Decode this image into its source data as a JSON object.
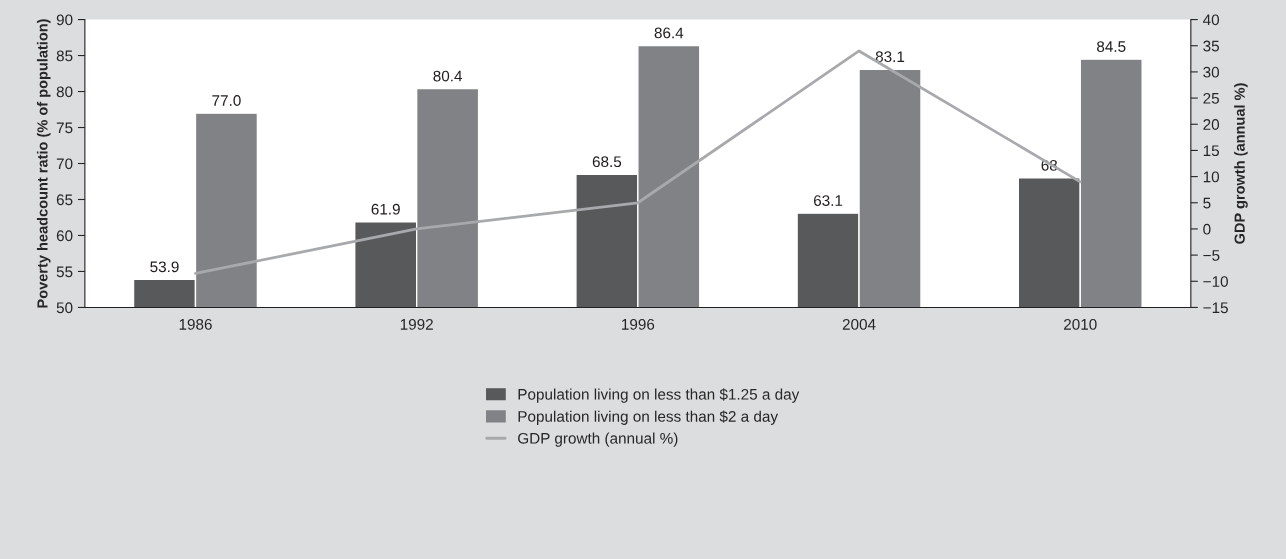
{
  "chart_data": {
    "type": "bar",
    "categories": [
      "1986",
      "1992",
      "1996",
      "2004",
      "2010"
    ],
    "ylabel": "Poverty headcount ratio (% of population)",
    "y2label": "GDP growth (annual %)",
    "series": [
      {
        "name": "Population living on less than $1.25 a day",
        "color": "#58595b",
        "values": [
          53.9,
          61.9,
          68.5,
          63.1,
          68
        ],
        "value_labels": [
          "53.9",
          "61.9",
          "68.5",
          "63.1",
          "68"
        ]
      },
      {
        "name": "Population living on less than $2 a day",
        "color": "#808285",
        "values": [
          77.0,
          80.4,
          86.4,
          83.1,
          84.5
        ],
        "value_labels": [
          "77.0",
          "80.4",
          "86.4",
          "83.1",
          "84.5"
        ]
      },
      {
        "name": "GDP growth (annual %)",
        "type": "line",
        "axis": "y2",
        "color": "#a7a9ac",
        "values": [
          -8.5,
          0,
          5,
          34,
          9
        ]
      }
    ],
    "ylim": [
      50,
      90
    ],
    "yticks": [
      50,
      55,
      60,
      65,
      70,
      75,
      80,
      85,
      90
    ],
    "y2lim": [
      -15,
      40
    ],
    "y2ticks": [
      {
        "value": -15,
        "label": "−15"
      },
      {
        "value": -10,
        "label": "−10"
      },
      {
        "value": -5,
        "label": "−5"
      },
      0,
      5,
      10,
      15,
      20,
      25,
      30,
      35,
      40
    ],
    "grid": false,
    "legend": "bottom"
  }
}
